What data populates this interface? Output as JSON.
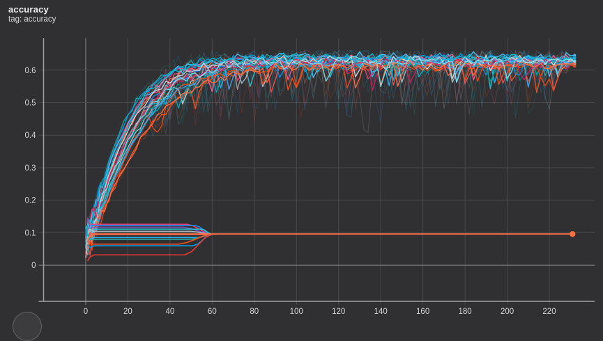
{
  "header": {
    "title": "accuracy",
    "subtitle": "tag: accuracy"
  },
  "colors": {
    "background": "#303032",
    "grid": "#4a4a4c",
    "zero_line": "#8a8a8a",
    "axis": "#a2a2a2",
    "tick_label": "#d6d6d6",
    "title_text": "#ededed",
    "subtitle_text": "#d9d9d9",
    "long_flat_run": "#ff7043"
  },
  "chart_data": {
    "type": "line",
    "title": "accuracy",
    "subtitle": "tag: accuracy",
    "xlabel": "",
    "ylabel": "",
    "xlim": [
      -20,
      241.5
    ],
    "ylim": [
      -0.111,
      0.698
    ],
    "x_ticks": [
      0,
      20,
      40,
      60,
      80,
      100,
      120,
      140,
      160,
      180,
      200,
      220
    ],
    "y_ticks": [
      0,
      0.1,
      0.2,
      0.3,
      0.4,
      0.5,
      0.6
    ],
    "grid": true,
    "legend_position": "none",
    "smoothed_overlay": true,
    "description": "TensorBoard scalar chart: many training runs rise from ~0.05 to a noisy plateau of 0.60-0.64 by step ~70 and end near step 232; about a dozen failed runs stay flat between 0.03 and 0.13 and collapse to ~0.095 around step 60; one orange run stays flat at ~0.096 until step ~231 and ends with a dot marker.",
    "plateau_band": [
      0.58,
      0.645
    ],
    "final_value_range": [
      0.61,
      0.64
    ],
    "flat_converge_value": 0.095,
    "flat_converge_step": 60,
    "end_step": 232,
    "series_rising": [
      {
        "c": "#ff7043",
        "T": 20,
        "p": 0.63,
        "s0": 0.05,
        "seed": 11
      },
      {
        "c": "#29b6f6",
        "T": 24,
        "p": 0.636,
        "s0": 0.08,
        "seed": 12
      },
      {
        "c": "#ec407a",
        "T": 19,
        "p": 0.624,
        "s0": 0.1,
        "seed": 13
      },
      {
        "c": "#26c6da",
        "T": 26,
        "p": 0.628,
        "s0": 0.06,
        "seed": 14
      },
      {
        "c": "#ef5350",
        "T": 22,
        "p": 0.617,
        "s0": 0.04,
        "seed": 15
      },
      {
        "c": "#26a69a",
        "T": 18,
        "p": 0.633,
        "s0": 0.09,
        "seed": 16
      },
      {
        "c": "#b0bec5",
        "T": 25,
        "p": 0.622,
        "s0": 0.07,
        "seed": 17
      },
      {
        "c": "#4fc3f7",
        "T": 21,
        "p": 0.641,
        "s0": 0.11,
        "seed": 18
      },
      {
        "c": "#f4511e",
        "T": 28,
        "p": 0.614,
        "s0": 0.05,
        "seed": 19
      },
      {
        "c": "#1e88e5",
        "T": 23,
        "p": 0.627,
        "s0": 0.08,
        "seed": 20
      },
      {
        "c": "#f06292",
        "T": 20,
        "p": 0.634,
        "s0": 0.06,
        "seed": 21
      },
      {
        "c": "#00acc1",
        "T": 27,
        "p": 0.62,
        "s0": 0.09,
        "seed": 22
      },
      {
        "c": "#9e9e9e",
        "T": 22,
        "p": 0.625,
        "s0": 0.05,
        "seed": 23
      },
      {
        "c": "#00897b",
        "T": 24,
        "p": 0.618,
        "s0": 0.07,
        "seed": 24
      },
      {
        "c": "#039be5",
        "T": 19,
        "p": 0.637,
        "s0": 0.1,
        "seed": 25
      },
      {
        "c": "#e64a19",
        "T": 25,
        "p": 0.612,
        "s0": 0.04,
        "seed": 26
      },
      {
        "c": "#cfd8dc",
        "T": 21,
        "p": 0.63,
        "s0": 0.08,
        "seed": 27
      },
      {
        "c": "#42a5f5",
        "T": 26,
        "p": 0.623,
        "s0": 0.06,
        "seed": 28
      },
      {
        "c": "#d81b60",
        "T": 23,
        "p": 0.621,
        "s0": 0.09,
        "seed": 29
      },
      {
        "c": "#00bcd4",
        "T": 20,
        "p": 0.639,
        "s0": 0.07,
        "seed": 30
      },
      {
        "c": "#ff7043",
        "T": 29,
        "p": 0.616,
        "s0": 0.06,
        "seed": 31
      },
      {
        "c": "#80deea",
        "T": 24,
        "p": 0.629,
        "s0": 0.08,
        "seed": 32
      }
    ],
    "series_flat": [
      {
        "c": "#ec407a",
        "v": 0.126,
        "fe": 48,
        "seed": 41
      },
      {
        "c": "#1e88e5",
        "v": 0.122,
        "fe": 52,
        "seed": 42
      },
      {
        "c": "#7e57c2",
        "v": 0.117,
        "fe": 46,
        "seed": 43
      },
      {
        "c": "#26c6da",
        "v": 0.111,
        "fe": 55,
        "seed": 44
      },
      {
        "c": "#b0bec5",
        "v": 0.104,
        "fe": 50,
        "seed": 45
      },
      {
        "c": "#ef5350",
        "v": 0.094,
        "fe": 56,
        "seed": 46
      },
      {
        "c": "#29b6f6",
        "v": 0.085,
        "fe": 53,
        "seed": 47
      },
      {
        "c": "#26a69a",
        "v": 0.079,
        "fe": 49,
        "seed": 48
      },
      {
        "c": "#f4511e",
        "v": 0.065,
        "fe": 44,
        "seed": 49
      },
      {
        "c": "#039be5",
        "v": 0.06,
        "fe": 51,
        "seed": 50
      },
      {
        "c": "#e53935",
        "v": 0.032,
        "fe": 47,
        "seed": 51
      }
    ],
    "series_flat_long": {
      "c": "#ff7043",
      "v": 0.096,
      "fe": 231,
      "seed": 52,
      "end_marker": true
    }
  }
}
